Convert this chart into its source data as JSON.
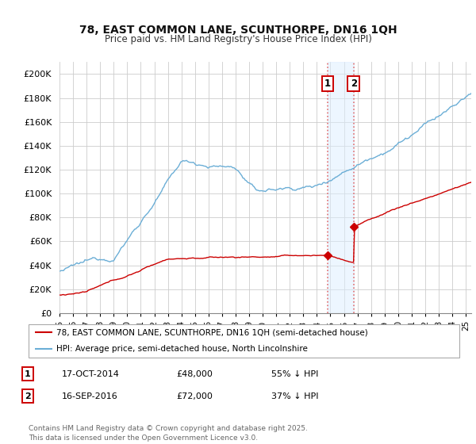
{
  "title": "78, EAST COMMON LANE, SCUNTHORPE, DN16 1QH",
  "subtitle": "Price paid vs. HM Land Registry's House Price Index (HPI)",
  "ylabel_ticks": [
    "£0",
    "£20K",
    "£40K",
    "£60K",
    "£80K",
    "£100K",
    "£120K",
    "£140K",
    "£160K",
    "£180K",
    "£200K"
  ],
  "ytick_vals": [
    0,
    20000,
    40000,
    60000,
    80000,
    100000,
    120000,
    140000,
    160000,
    180000,
    200000
  ],
  "ylim": [
    0,
    210000
  ],
  "xlim_start": 1995.3,
  "xlim_end": 2025.4,
  "hpi_color": "#6baed6",
  "price_color": "#cc0000",
  "purchase1_year": 2014.8,
  "purchase1_price": 48000,
  "purchase2_year": 2016.72,
  "purchase2_price": 72000,
  "vline_color": "#e06060",
  "shade_color": "#ddeeff",
  "shade_alpha": 0.5,
  "legend1_text": "78, EAST COMMON LANE, SCUNTHORPE, DN16 1QH (semi-detached house)",
  "legend2_text": "HPI: Average price, semi-detached house, North Lincolnshire",
  "annotation1_date": "17-OCT-2014",
  "annotation1_price": "£48,000",
  "annotation1_pct": "55% ↓ HPI",
  "annotation2_date": "16-SEP-2016",
  "annotation2_price": "£72,000",
  "annotation2_pct": "37% ↓ HPI",
  "footer": "Contains HM Land Registry data © Crown copyright and database right 2025.\nThis data is licensed under the Open Government Licence v3.0.",
  "bg_color": "#ffffff",
  "grid_color": "#cccccc"
}
